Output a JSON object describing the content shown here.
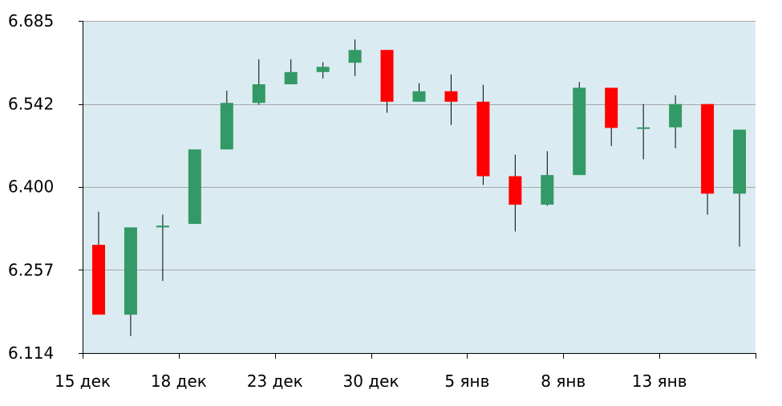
{
  "chart_data": {
    "type": "candlestick",
    "title": "",
    "xlabel": "",
    "ylabel": "",
    "ylim": [
      6.114,
      6.685
    ],
    "y_ticks": [
      "6.114",
      "6.257",
      "6.400",
      "6.542",
      "6.685"
    ],
    "x_tick_labels": [
      "15 дек",
      "18 дек",
      "23 дек",
      "30 дек",
      "5 янв",
      "8 янв",
      "13 янв"
    ],
    "grid": true,
    "legend": "none",
    "colors": {
      "plot_background": "#daecf2",
      "gridline": "#a6a6a6",
      "axis": "#000000",
      "up": "#339966",
      "down": "#ff0000",
      "wick": "#000000"
    },
    "candles": [
      {
        "open": 6.3,
        "close": 6.18,
        "high": 6.357,
        "low": 6.18
      },
      {
        "open": 6.18,
        "close": 6.33,
        "high": 6.33,
        "low": 6.143
      },
      {
        "open": 6.33,
        "close": 6.333,
        "high": 6.352,
        "low": 6.238
      },
      {
        "open": 6.336,
        "close": 6.464,
        "high": 6.464,
        "low": 6.336
      },
      {
        "open": 6.464,
        "close": 6.544,
        "high": 6.565,
        "low": 6.464
      },
      {
        "open": 6.544,
        "close": 6.576,
        "high": 6.619,
        "low": 6.541
      },
      {
        "open": 6.576,
        "close": 6.597,
        "high": 6.619,
        "low": 6.576
      },
      {
        "open": 6.597,
        "close": 6.606,
        "high": 6.614,
        "low": 6.586
      },
      {
        "open": 6.613,
        "close": 6.635,
        "high": 6.653,
        "low": 6.59
      },
      {
        "open": 6.635,
        "close": 6.546,
        "high": 6.635,
        "low": 6.527
      },
      {
        "open": 6.546,
        "close": 6.564,
        "high": 6.578,
        "low": 6.546
      },
      {
        "open": 6.564,
        "close": 6.546,
        "high": 6.593,
        "low": 6.506
      },
      {
        "open": 6.546,
        "close": 6.418,
        "high": 6.575,
        "low": 6.403
      },
      {
        "open": 6.418,
        "close": 6.369,
        "high": 6.455,
        "low": 6.323
      },
      {
        "open": 6.369,
        "close": 6.42,
        "high": 6.461,
        "low": 6.367
      },
      {
        "open": 6.42,
        "close": 6.57,
        "high": 6.58,
        "low": 6.42
      },
      {
        "open": 6.57,
        "close": 6.501,
        "high": 6.57,
        "low": 6.47
      },
      {
        "open": 6.501,
        "close": 6.502,
        "high": 6.542,
        "low": 6.447
      },
      {
        "open": 6.502,
        "close": 6.542,
        "high": 6.557,
        "low": 6.466
      },
      {
        "open": 6.542,
        "close": 6.388,
        "high": 6.542,
        "low": 6.352
      },
      {
        "open": 6.388,
        "close": 6.498,
        "high": 6.498,
        "low": 6.297
      }
    ]
  }
}
